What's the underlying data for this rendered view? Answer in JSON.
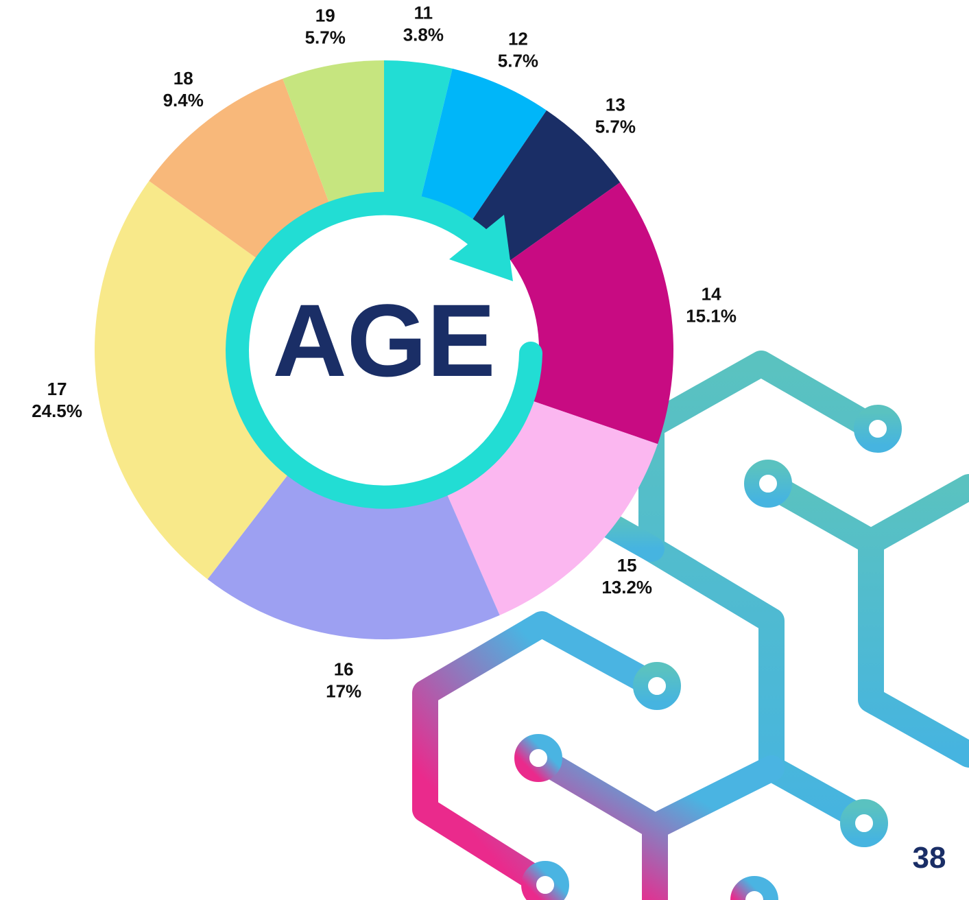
{
  "chart_data": {
    "type": "pie",
    "donut": true,
    "center_text": "AGE",
    "categories": [
      "11",
      "12",
      "13",
      "14",
      "15",
      "16",
      "17",
      "18",
      "19"
    ],
    "values": [
      3.8,
      5.7,
      5.7,
      15.1,
      13.2,
      17,
      24.5,
      9.4,
      5.7
    ],
    "value_labels": [
      "3.8%",
      "5.7%",
      "5.7%",
      "15.1%",
      "13.2%",
      "17%",
      "24.5%",
      "9.4%",
      "5.7%"
    ],
    "colors": [
      "#22ddd4",
      "#00b6f9",
      "#1a2e66",
      "#c80b82",
      "#fbb7f0",
      "#9da0f2",
      "#f8e98a",
      "#f8b87a",
      "#c6e57f"
    ]
  },
  "page_number": "38"
}
